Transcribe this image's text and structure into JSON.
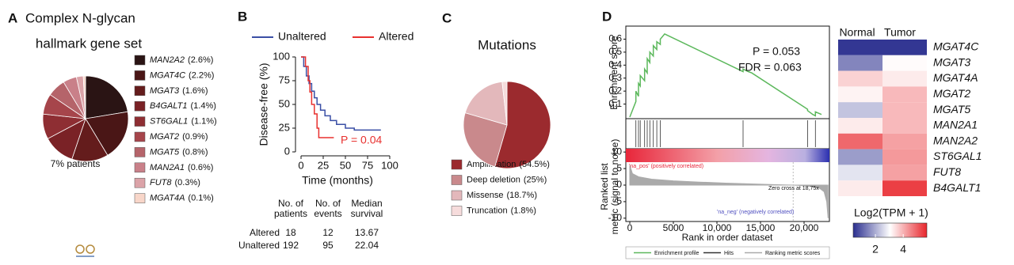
{
  "chart_data": [
    {
      "type": "pie",
      "panel": "A",
      "title": "Complex N-glycan",
      "subtitle": "hallmark gene set",
      "annotation": "7% patients",
      "categories": [
        "MAN2A2",
        "MGAT4C",
        "MGAT3",
        "B4GALT1",
        "ST6GAL1",
        "MGAT2",
        "MGAT5",
        "MAN2A1",
        "FUT8",
        "MGAT4A"
      ],
      "values": [
        2.6,
        2.2,
        1.6,
        1.4,
        1.1,
        0.9,
        0.8,
        0.6,
        0.3,
        0.1
      ],
      "value_labels": [
        "(2.6%)",
        "(2.2%)",
        "(1.6%)",
        "(1.4%)",
        "(1.1%)",
        "(0.9%)",
        "(0.8%)",
        "(0.6%)",
        "(0.3%)",
        "(0.1%)"
      ],
      "colors": [
        "#2a1414",
        "#4a1616",
        "#641c1c",
        "#7a2226",
        "#8e2e33",
        "#a6454b",
        "#b5646a",
        "#c98089",
        "#dba3a8",
        "#f8d6c9"
      ]
    },
    {
      "type": "line",
      "panel": "B",
      "xlabel": "Time (months)",
      "ylabel": "Disease-free (%)",
      "annotation": "P = 0.04",
      "series": [
        {
          "name": "Unaltered",
          "color": "#3a4fa5",
          "x": [
            0,
            3,
            3,
            6,
            6,
            9,
            9,
            12,
            12,
            15,
            15,
            18,
            18,
            22,
            22,
            27,
            27,
            33,
            33,
            40,
            40,
            50,
            50,
            60,
            60,
            90
          ],
          "values": [
            100,
            100,
            90,
            90,
            80,
            80,
            72,
            72,
            64,
            64,
            57,
            57,
            50,
            50,
            44,
            44,
            38,
            38,
            33,
            33,
            29,
            29,
            25,
            25,
            23,
            23
          ]
        },
        {
          "name": "Altered",
          "color": "#e8312f",
          "x": [
            0,
            5,
            5,
            8,
            8,
            10,
            10,
            12,
            12,
            15,
            15,
            18,
            18,
            20,
            20,
            37
          ],
          "values": [
            100,
            100,
            90,
            90,
            75,
            75,
            63,
            63,
            50,
            50,
            40,
            40,
            25,
            25,
            15,
            15
          ]
        }
      ],
      "xlim": [
        0,
        100
      ],
      "xticks": [
        0,
        25,
        50,
        75,
        100
      ],
      "ylim": [
        0,
        100
      ],
      "yticks": [
        0,
        25,
        50,
        75,
        100
      ],
      "table": {
        "header": [
          [
            "No. of",
            "patients"
          ],
          [
            "No. of",
            "events"
          ],
          [
            "Median",
            "survival"
          ]
        ],
        "rows": [
          [
            "Altered",
            18,
            12,
            13.67
          ],
          [
            "Unaltered",
            192,
            95,
            22.04
          ]
        ]
      }
    },
    {
      "type": "pie",
      "panel": "C",
      "title": "Mutations",
      "categories": [
        "Amplification",
        "Deep deletion",
        "Missense",
        "Truncation"
      ],
      "values": [
        54.5,
        25,
        18.7,
        1.8
      ],
      "value_labels": [
        "(54.5%)",
        "(25%)",
        "(18.7%)",
        "(1.8%)"
      ],
      "colors": [
        "#9b2a2e",
        "#c9898c",
        "#e3b8bb",
        "#f6dcdc"
      ]
    },
    {
      "type": "gsea",
      "panel": "D",
      "ylabel": "Enrichment score",
      "y2label": [
        "Ranked list",
        "metric (signal to noise)"
      ],
      "xlabel": "Rank in order dataset",
      "annotations": [
        "P = 0.053",
        "FDR = 0.063"
      ],
      "band_labels": [
        "'na_pos' (positively correlated)",
        "Zero cross at 18,75x",
        "'na_neg' (negatively correlated)"
      ],
      "xlim": [
        0,
        23000
      ],
      "xticks": [
        0,
        5000,
        {
          "value": 10000,
          "label": "10,000"
        },
        {
          "value": 15000,
          "label": "15,000"
        },
        {
          "value": 20000,
          "label": "20,000"
        }
      ],
      "ylim": [
        0,
        0.67
      ],
      "yticks": [
        0.1,
        0.2,
        0.3,
        0.4,
        0.5,
        0.6
      ],
      "y2lim": [
        -11,
        11
      ],
      "y2ticks": [
        -10,
        -5,
        0,
        5,
        10
      ],
      "series": [
        {
          "name": "Enrichment profile",
          "color": "#5cb85c",
          "x": [
            0,
            700,
            700,
            1000,
            1000,
            1200,
            1200,
            1700,
            1700,
            2000,
            2000,
            2300,
            2300,
            2700,
            2700,
            3100,
            3100,
            3500,
            3500,
            4000,
            13000,
            13000,
            13600,
            14000,
            20400,
            20400,
            21000,
            21300,
            21300,
            22000
          ],
          "values": [
            0,
            0.12,
            0.2,
            0.16,
            0.26,
            0.24,
            0.32,
            0.28,
            0.37,
            0.34,
            0.45,
            0.42,
            0.5,
            0.47,
            0.55,
            0.52,
            0.58,
            0.56,
            0.6,
            0.64,
            0.35,
            0.37,
            0.35,
            0.34,
            0.06,
            0.05,
            0.02,
            0.01,
            0.04,
            0.02
          ]
        }
      ],
      "hits_name": "Hits",
      "hits": [
        700,
        1000,
        1200,
        1700,
        2000,
        2300,
        2700,
        3100,
        3500,
        13000,
        20400,
        21300
      ],
      "metric": {
        "name": "Ranking metric scores",
        "color": "#aaaaaa",
        "x": [
          0,
          300,
          1000,
          2500,
          5000,
          8000,
          11000,
          14000,
          16500,
          18750,
          20000,
          21000,
          21800,
          22300,
          22600,
          22750
        ],
        "values": [
          6,
          3.5,
          2.5,
          1.8,
          1.3,
          0.9,
          0.6,
          0.35,
          0.15,
          0,
          -0.2,
          -0.5,
          -1,
          -2,
          -5,
          -10
        ]
      }
    },
    {
      "type": "heatmap",
      "columns": [
        "Normal",
        "Tumor"
      ],
      "rows": [
        "MGAT4C",
        "MGAT3",
        "MGAT4A",
        "MGAT2",
        "MGAT5",
        "MAN2A1",
        "MAN2A2",
        "ST6GAL1",
        "FUT8",
        "B4GALT1"
      ],
      "values": [
        [
          0.5,
          0.5
        ],
        [
          1.5,
          3.1
        ],
        [
          3.6,
          3.3
        ],
        [
          3.2,
          3.9
        ],
        [
          2.3,
          3.9
        ],
        [
          3.3,
          3.9
        ],
        [
          4.9,
          4.2
        ],
        [
          1.8,
          4.3
        ],
        [
          2.7,
          4.2
        ],
        [
          3.3,
          5.4
        ]
      ],
      "colorscale": [
        "#2b2f8f",
        "#ffffff",
        "#e8262c"
      ],
      "clim": [
        0.4,
        5.7
      ],
      "colorbar_title": "Log2(TPM + 1)",
      "colorbar_ticks": [
        2,
        4
      ]
    }
  ]
}
